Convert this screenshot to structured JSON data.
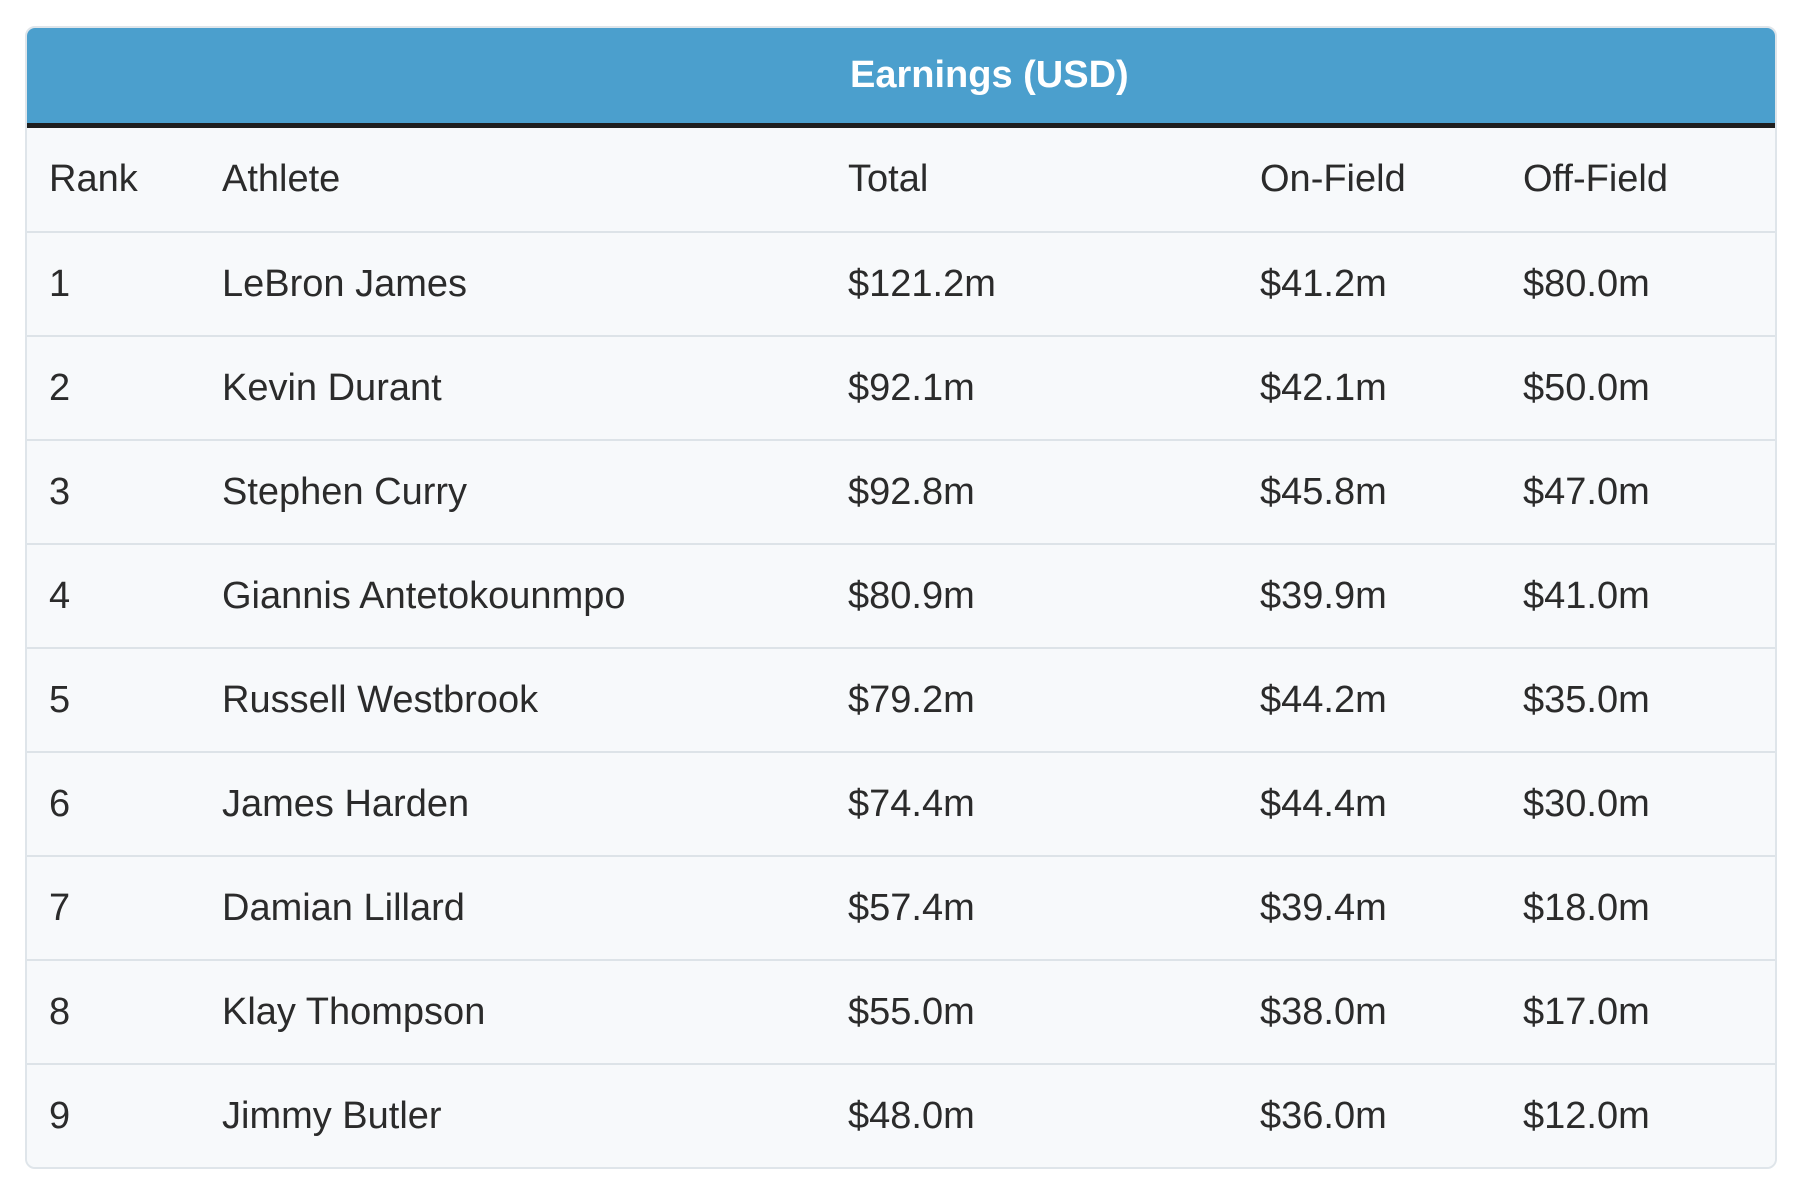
{
  "chart_data": {
    "type": "table",
    "group_header": "Earnings (USD)",
    "columns": [
      "Rank",
      "Athlete",
      "Total",
      "On-Field",
      "Off-Field"
    ],
    "rows": [
      [
        "1",
        "LeBron James",
        "$121.2m",
        "$41.2m",
        "$80.0m"
      ],
      [
        "2",
        "Kevin Durant",
        "$92.1m",
        "$42.1m",
        "$50.0m"
      ],
      [
        "3",
        "Stephen Curry",
        "$92.8m",
        "$45.8m",
        "$47.0m"
      ],
      [
        "4",
        "Giannis Antetokounmpo",
        "$80.9m",
        "$39.9m",
        "$41.0m"
      ],
      [
        "5",
        "Russell Westbrook",
        "$79.2m",
        "$44.2m",
        "$35.0m"
      ],
      [
        "6",
        "James Harden",
        "$74.4m",
        "$44.4m",
        "$30.0m"
      ],
      [
        "7",
        "Damian Lillard",
        "$57.4m",
        "$39.4m",
        "$18.0m"
      ],
      [
        "8",
        "Klay Thompson",
        "$55.0m",
        "$38.0m",
        "$17.0m"
      ],
      [
        "9",
        "Jimmy Butler",
        "$48.0m",
        "$36.0m",
        "$12.0m"
      ]
    ]
  },
  "colors": {
    "header_bg": "#4b9fcd",
    "header_text": "#ffffff",
    "header_rule": "#1e1e1e",
    "row_bg": "#f7f9fb",
    "row_divider": "#dde3e8",
    "text": "#2b2b2b"
  }
}
